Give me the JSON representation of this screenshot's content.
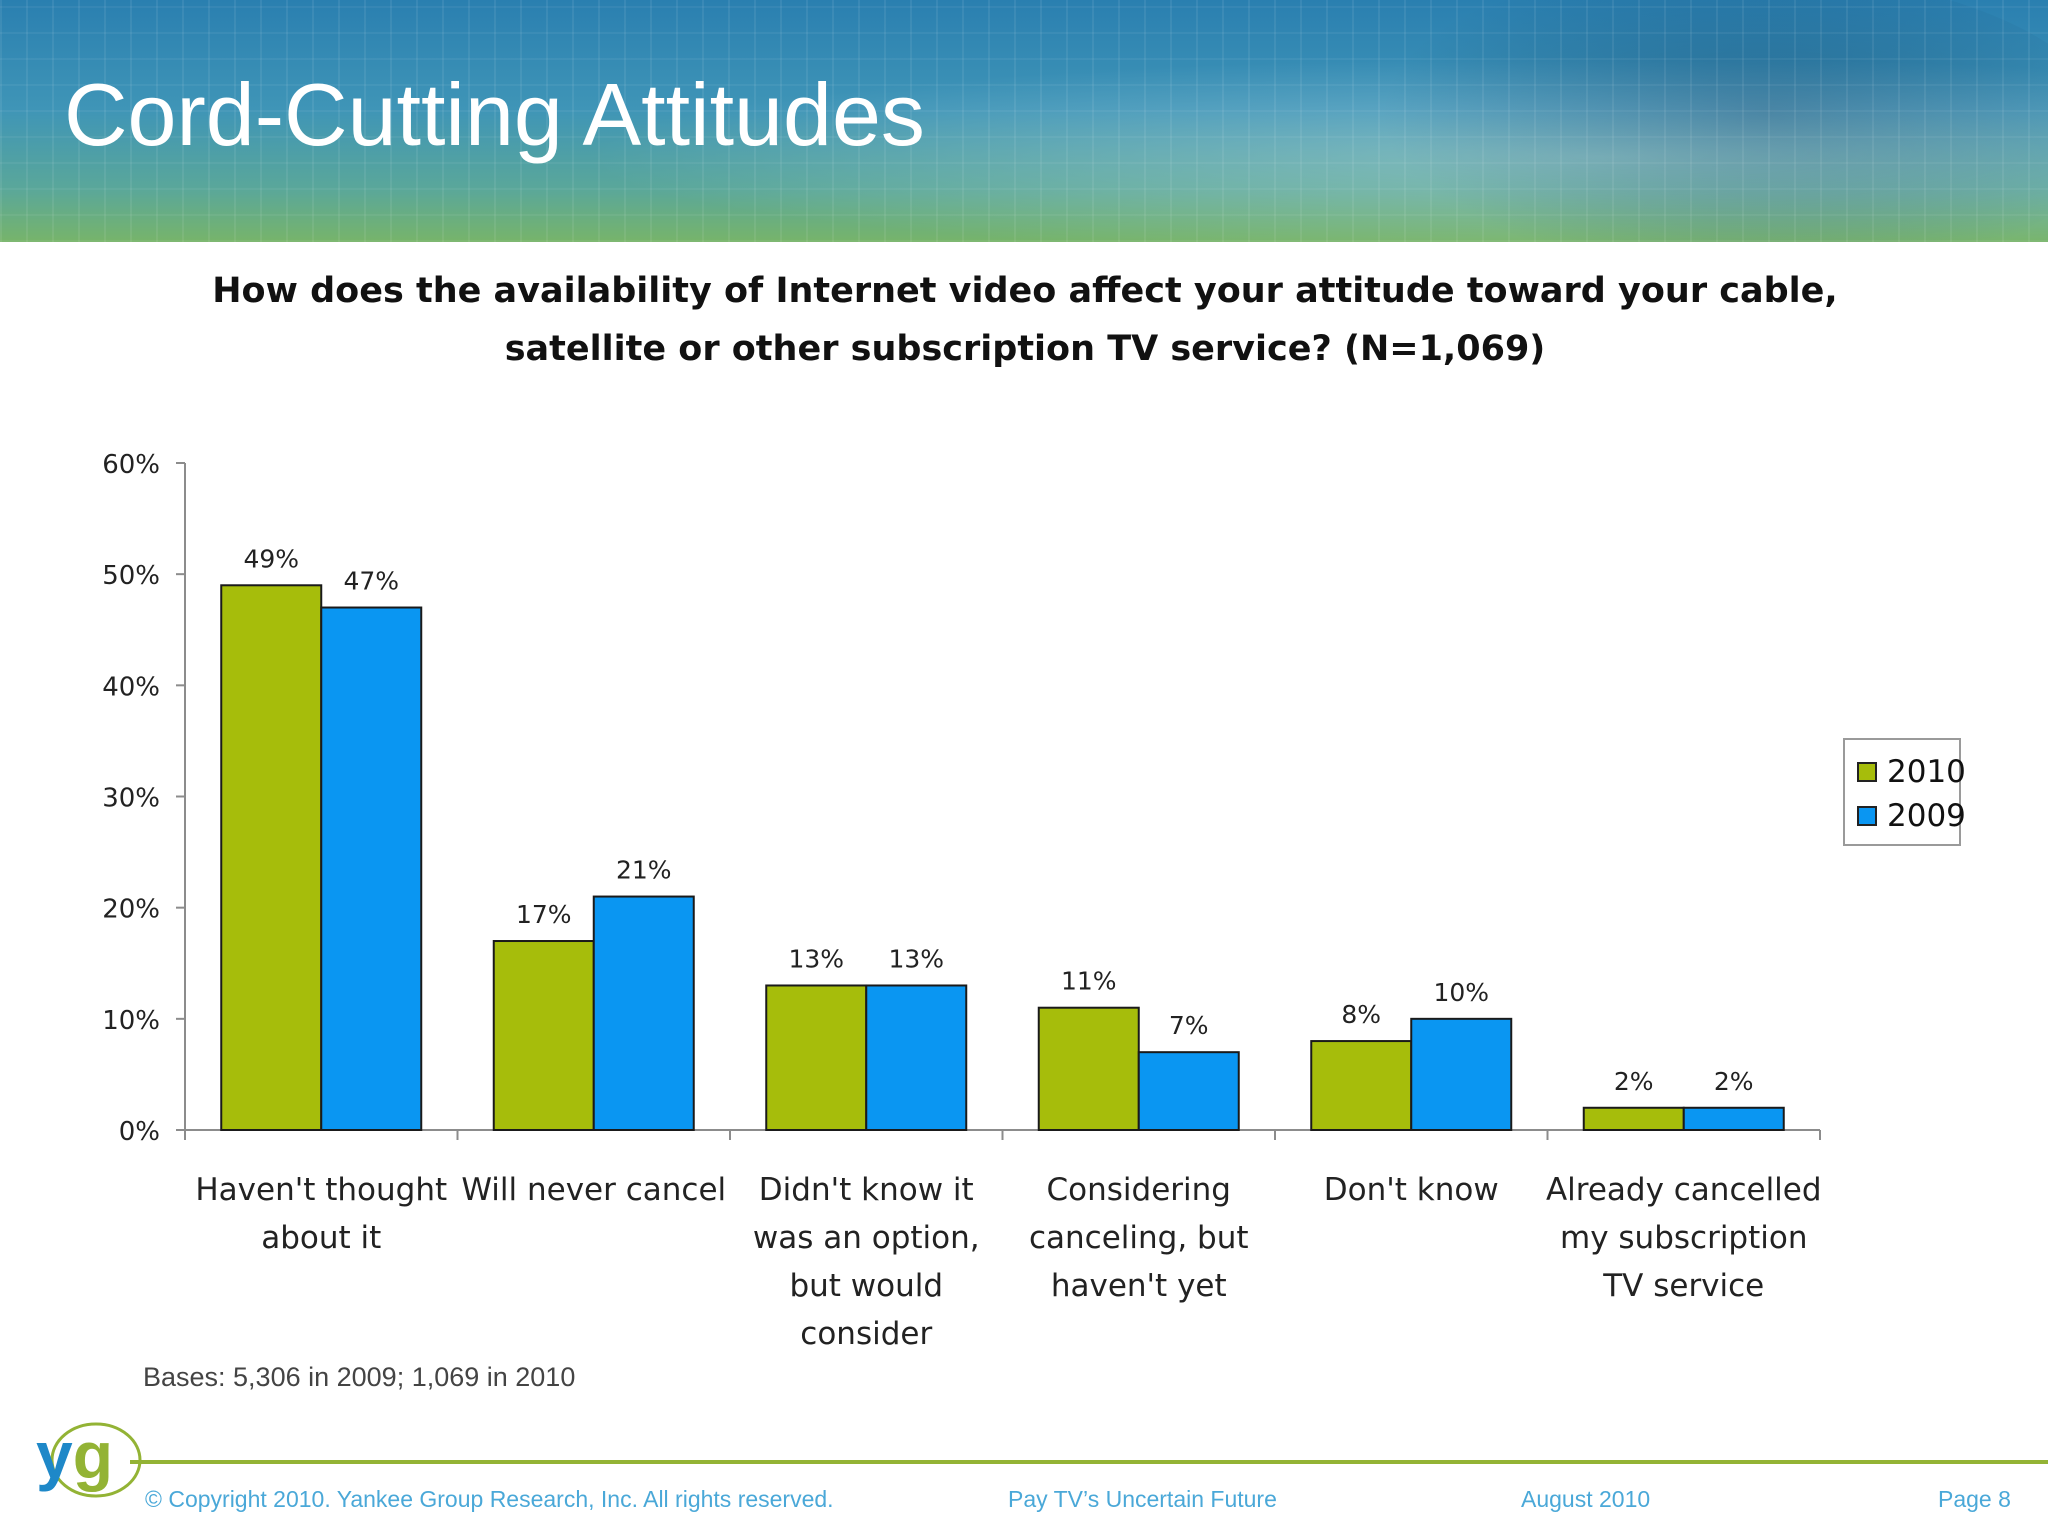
{
  "slide": {
    "title": "Cord-Cutting Attitudes",
    "bases": "Bases: 5,306 in 2009; 1,069 in 2010"
  },
  "colors": {
    "series_2010": "#a6bd0b",
    "series_2009": "#0a96f2",
    "footer_line": "#93b335",
    "footer_text": "#4aa8d8"
  },
  "chart_data": {
    "type": "bar",
    "title_line1": "How does the availability of Internet video affect your attitude toward your cable,",
    "title_line2": "satellite or other subscription TV service?  (N=1,069)",
    "categories": [
      [
        "Haven't thought",
        "about it"
      ],
      [
        "Will never cancel"
      ],
      [
        "Didn't know it",
        "was an option,",
        "but would",
        "consider"
      ],
      [
        "Considering",
        "canceling, but",
        "haven't yet"
      ],
      [
        "Don't know"
      ],
      [
        "Already cancelled",
        "my subscription",
        "TV service"
      ]
    ],
    "series": [
      {
        "name": "2010",
        "values": [
          49,
          17,
          13,
          11,
          8,
          2
        ],
        "labels": [
          "49%",
          "17%",
          "13%",
          "11%",
          "8%",
          "2%"
        ]
      },
      {
        "name": "2009",
        "values": [
          47,
          21,
          13,
          7,
          10,
          2
        ],
        "labels": [
          "47%",
          "21%",
          "13%",
          "7%",
          "10%",
          "2%"
        ]
      }
    ],
    "y_ticks": [
      "0%",
      "10%",
      "20%",
      "30%",
      "40%",
      "50%",
      "60%"
    ],
    "ylim": [
      0,
      60
    ],
    "legend_position": "right",
    "grid": false
  },
  "footer": {
    "logo_text": "yg",
    "copyright": "© Copyright 2010. Yankee Group Research, Inc.  All rights reserved.",
    "report": "Pay TV’s Uncertain Future",
    "date": "August 2010",
    "page": "Page 8"
  }
}
